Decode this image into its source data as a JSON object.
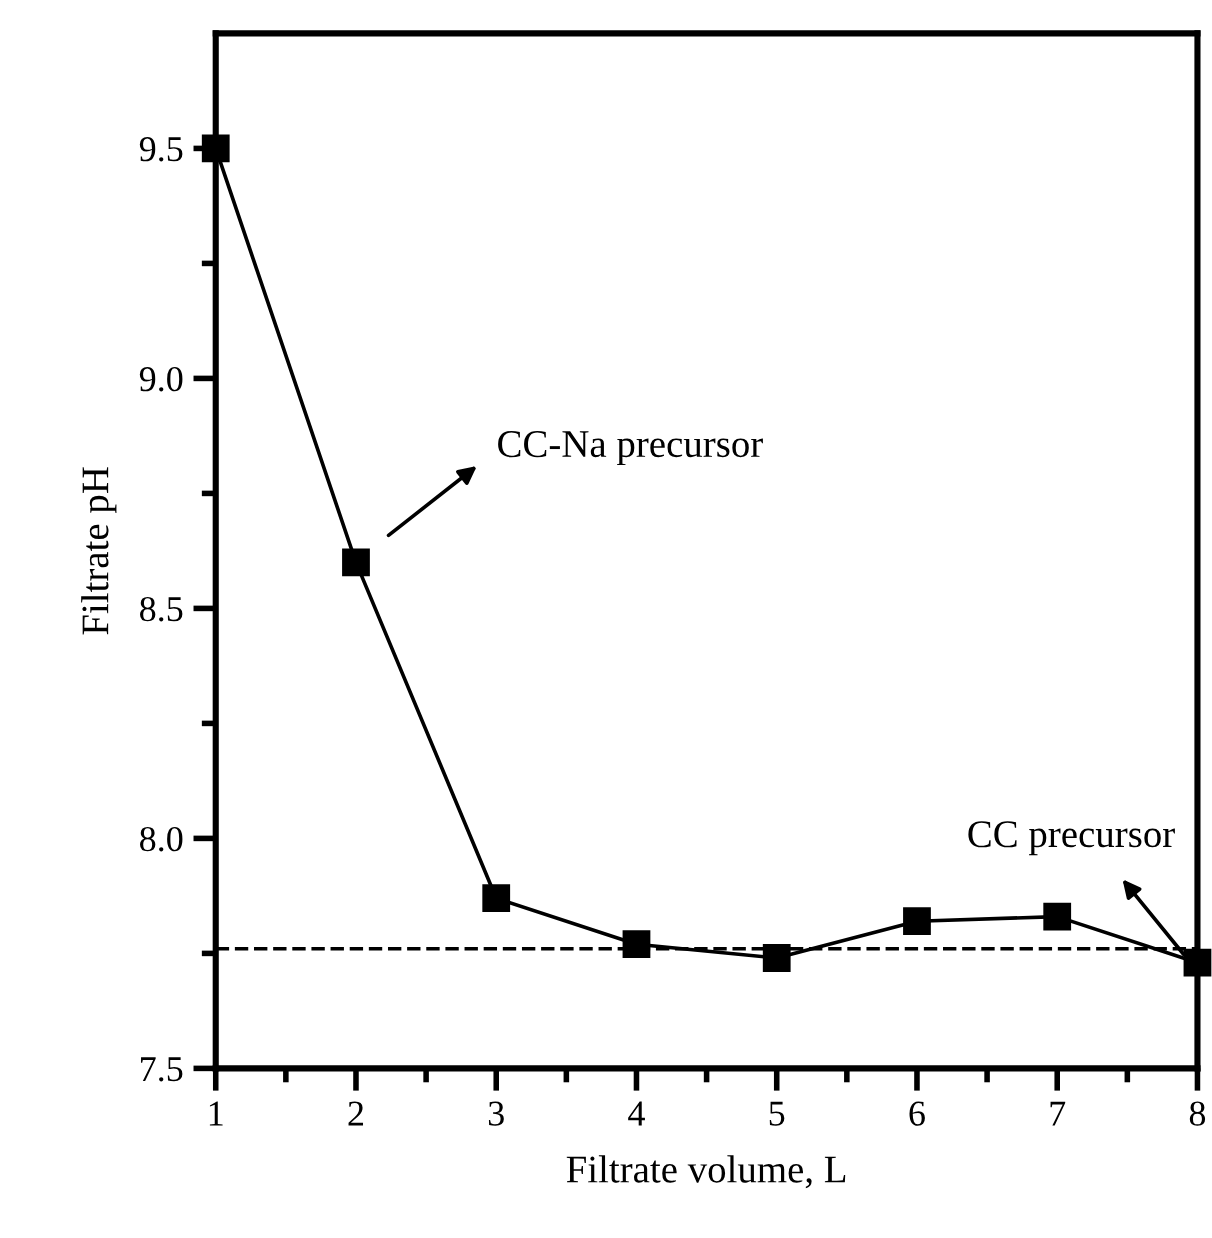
{
  "chart_data": {
    "type": "line",
    "xlabel": "Filtrate volume, L",
    "ylabel": "Filtrate pH",
    "x": [
      1,
      2,
      3,
      4,
      5,
      6,
      7,
      8
    ],
    "series": [
      {
        "color": "#000000",
        "values": [
          9.5,
          8.6,
          7.87,
          7.77,
          7.74,
          7.82,
          7.83,
          7.73
        ]
      }
    ],
    "marker": "square",
    "line_style": "solid",
    "grid": false,
    "xlim": [
      1,
      8
    ],
    "ylim": [
      7.5,
      9.75
    ],
    "xticks": [
      1,
      {
        "value": 1.5,
        "label": null
      },
      2,
      {
        "value": 2.5,
        "label": null
      },
      3,
      {
        "value": 3.5,
        "label": null
      },
      4,
      {
        "value": 4.5,
        "label": null
      },
      5,
      {
        "value": 5.5,
        "label": null
      },
      6,
      {
        "value": 6.5,
        "label": null
      },
      7,
      {
        "value": 7.5,
        "label": null
      },
      8
    ],
    "yticks": [
      {
        "value": 7.5,
        "label": "7.5"
      },
      {
        "value": 7.75,
        "label": null
      },
      {
        "value": 8.0,
        "label": "8.0"
      },
      {
        "value": 8.25,
        "label": null
      },
      {
        "value": 8.5,
        "label": "8.5"
      },
      {
        "value": 8.75,
        "label": null
      },
      {
        "value": 9.0,
        "label": "9.0"
      },
      {
        "value": 9.25,
        "label": null
      },
      {
        "value": 9.5,
        "label": "9.5"
      }
    ],
    "ref_lines": [
      {
        "axis": "y",
        "value": 7.76,
        "color": "#000000",
        "line_style": "dashed"
      }
    ],
    "annotations": [
      "CC-Na precursor",
      {
        "text": "CC precursor",
        "x": 8,
        "y": 7.73
      }
    ]
  }
}
